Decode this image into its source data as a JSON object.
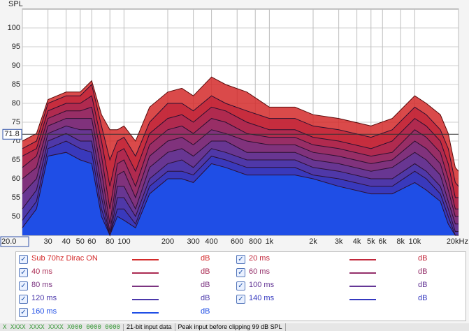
{
  "chart_data": {
    "type": "waterfall",
    "y_label": "SPL",
    "x": [
      20,
      25,
      30,
      40,
      50,
      60,
      70,
      80,
      90,
      100,
      120,
      150,
      200,
      250,
      300,
      400,
      500,
      700,
      1000,
      1500,
      2000,
      3000,
      5000,
      7000,
      10000,
      12000,
      15000,
      17000,
      19000,
      20000
    ],
    "series": [
      {
        "name": "Sub 70hz Dirac ON",
        "color": "#d42a2a",
        "values": [
          70,
          72,
          81,
          83,
          83,
          86,
          77,
          73,
          73,
          74,
          70,
          79,
          83,
          84,
          82,
          87,
          85,
          83,
          79,
          79,
          77,
          76,
          74,
          76,
          82,
          80,
          77,
          72,
          63,
          62
        ]
      },
      {
        "name": "20 ms",
        "color": "#c2283c",
        "values": [
          68,
          70,
          80,
          82,
          82,
          85,
          74,
          65,
          70,
          71,
          66,
          75,
          80,
          80,
          78,
          82,
          80,
          78,
          76,
          76,
          74,
          73,
          71,
          73,
          79,
          77,
          73,
          68,
          59,
          58
        ]
      },
      {
        "name": "40 ms",
        "color": "#ab2a52",
        "values": [
          66,
          68,
          78,
          80,
          80,
          82,
          70,
          58,
          67,
          68,
          62,
          72,
          76,
          77,
          75,
          79,
          78,
          75,
          73,
          73,
          71,
          70,
          68,
          70,
          76,
          74,
          70,
          64,
          55,
          55
        ]
      },
      {
        "name": "60 ms",
        "color": "#942f6a",
        "values": [
          63,
          66,
          76,
          78,
          78,
          79,
          66,
          52,
          64,
          65,
          58,
          69,
          73,
          74,
          72,
          76,
          75,
          72,
          71,
          71,
          69,
          68,
          66,
          67,
          73,
          71,
          67,
          60,
          52,
          52
        ]
      },
      {
        "name": "80 ms",
        "color": "#7b3380",
        "values": [
          60,
          63,
          74,
          76,
          76,
          76,
          62,
          48,
          61,
          62,
          55,
          66,
          70,
          71,
          69,
          73,
          72,
          70,
          69,
          69,
          67,
          66,
          64,
          65,
          70,
          68,
          64,
          57,
          50,
          50
        ]
      },
      {
        "name": "100 ms",
        "color": "#643796",
        "values": [
          56,
          60,
          72,
          74,
          73,
          73,
          58,
          46,
          58,
          58,
          52,
          63,
          67,
          68,
          66,
          70,
          70,
          67,
          67,
          67,
          65,
          64,
          62,
          63,
          67,
          65,
          61,
          54,
          48,
          48
        ]
      },
      {
        "name": "120 ms",
        "color": "#4b38ab",
        "values": [
          52,
          57,
          70,
          72,
          70,
          70,
          55,
          45,
          55,
          55,
          50,
          60,
          64,
          65,
          63,
          68,
          67,
          65,
          65,
          65,
          63,
          62,
          60,
          60,
          64,
          62,
          58,
          52,
          46,
          46
        ]
      },
      {
        "name": "140 ms",
        "color": "#3539c0",
        "values": [
          49,
          54,
          68,
          70,
          68,
          67,
          52,
          45,
          52,
          52,
          48,
          58,
          62,
          62,
          61,
          66,
          65,
          63,
          63,
          63,
          61,
          60,
          58,
          58,
          62,
          60,
          56,
          50,
          45,
          45
        ]
      },
      {
        "name": "160 ms",
        "color": "#1f4ee6",
        "values": [
          47,
          52,
          66,
          67,
          65,
          64,
          50,
          45,
          50,
          49,
          47,
          56,
          60,
          60,
          59,
          64,
          63,
          61,
          61,
          61,
          60,
          58,
          56,
          56,
          59,
          57,
          54,
          48,
          45,
          45
        ]
      }
    ],
    "log_x": true,
    "xlim": [
      20,
      20000
    ],
    "ylim": [
      45,
      105
    ],
    "xticks": [
      {
        "value": 20,
        "label": "20.0"
      },
      30,
      40,
      50,
      60,
      80,
      100,
      200,
      300,
      400,
      600,
      800,
      {
        "value": 1000,
        "label": "1k"
      },
      {
        "value": 2000,
        "label": "2k"
      },
      {
        "value": 3000,
        "label": "3k"
      },
      {
        "value": 4000,
        "label": "4k"
      },
      {
        "value": 5000,
        "label": "5k"
      },
      {
        "value": 6000,
        "label": "6k"
      },
      {
        "value": 8000,
        "label": "8k"
      },
      {
        "value": 10000,
        "label": "10k"
      },
      {
        "value": 20000,
        "label": "20kHz"
      }
    ],
    "yticks": [
      50,
      55,
      60,
      65,
      70,
      75,
      80,
      85,
      90,
      95,
      100
    ],
    "grid": true,
    "cursor": 71.8,
    "legend_unit": "dB"
  },
  "status_bar": [
    "X  XXXX XXXX  XXXX X000  0000 0000",
    "21-bit input data",
    "Peak input before clipping 99 dB SPL"
  ]
}
